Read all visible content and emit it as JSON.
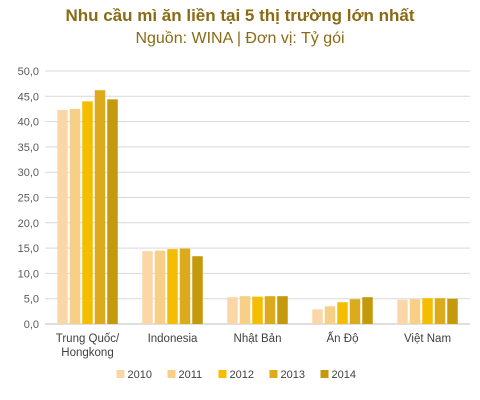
{
  "chart_data": {
    "type": "bar",
    "title": "Nhu cầu mì ăn liền tại 5 thị trường lớn nhất",
    "subtitle": "Nguồn: WINA | Đơn vị: Tỷ gói",
    "categories": [
      [
        "Trung Quốc/",
        "Hongkong"
      ],
      [
        "Indonesia"
      ],
      [
        "Nhật Bản"
      ],
      [
        "Ấn Độ"
      ],
      [
        "Việt Nam"
      ]
    ],
    "series": [
      {
        "name": "2010",
        "color": "#fbd7a7",
        "values": [
          42.3,
          14.4,
          5.3,
          2.9,
          4.8
        ]
      },
      {
        "name": "2011",
        "color": "#f7cf86",
        "values": [
          42.5,
          14.5,
          5.5,
          3.5,
          4.9
        ]
      },
      {
        "name": "2012",
        "color": "#f5bd00",
        "values": [
          44.0,
          14.8,
          5.4,
          4.3,
          5.1
        ]
      },
      {
        "name": "2013",
        "color": "#dcab1b",
        "values": [
          46.2,
          14.9,
          5.5,
          4.9,
          5.1
        ]
      },
      {
        "name": "2014",
        "color": "#c49a0c",
        "values": [
          44.4,
          13.4,
          5.5,
          5.3,
          5.0
        ]
      }
    ],
    "ylim": [
      0,
      50
    ],
    "yticks": [
      "0,0",
      "5,0",
      "10,0",
      "15,0",
      "20,0",
      "25,0",
      "30,0",
      "35,0",
      "40,0",
      "45,0",
      "50,0"
    ],
    "grid": true,
    "legend": "bottom"
  }
}
